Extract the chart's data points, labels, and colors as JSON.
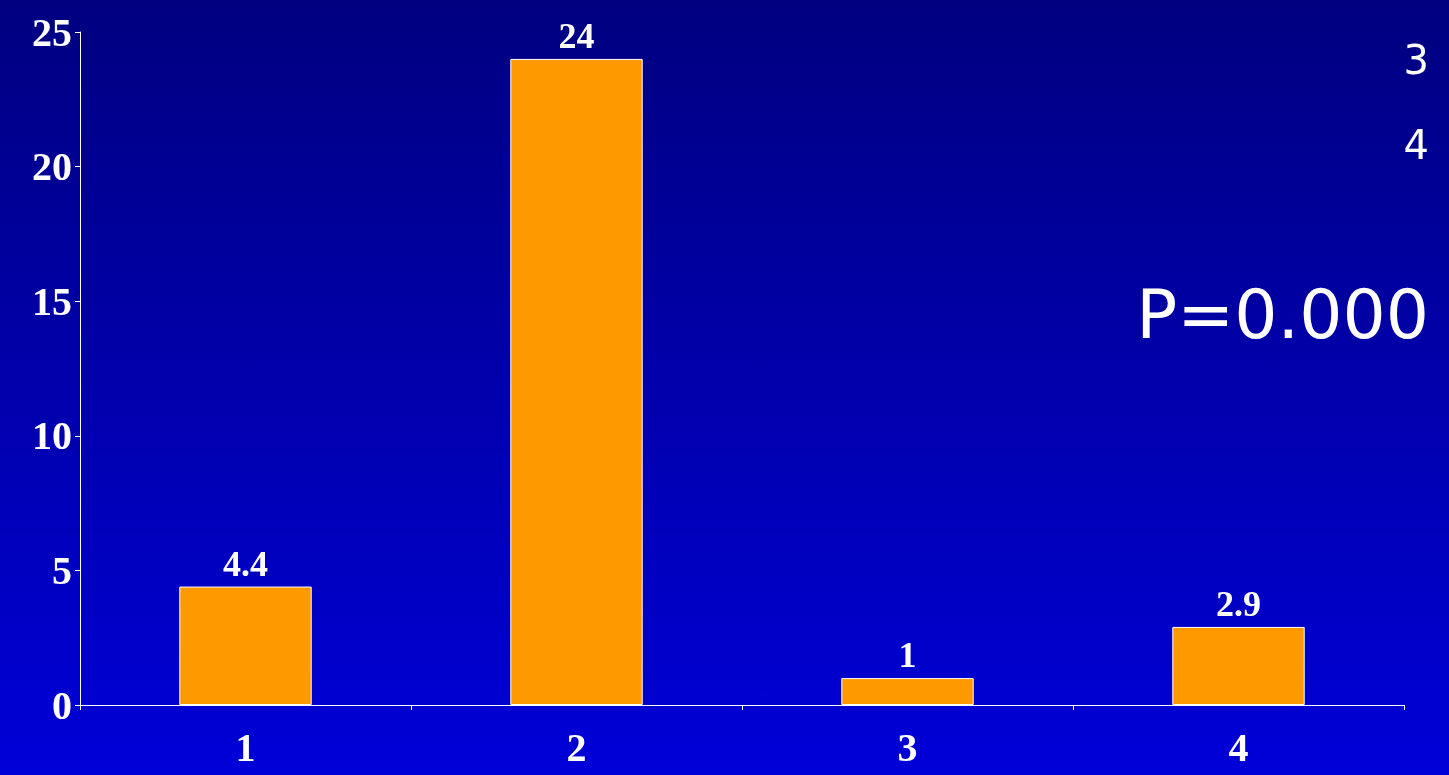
{
  "chart_data": {
    "type": "bar",
    "categories": [
      "1",
      "2",
      "3",
      "4"
    ],
    "values": [
      4.4,
      24,
      1,
      2.9
    ],
    "color": "#ff9900",
    "ylim": [
      0,
      25
    ],
    "yticks": [
      0,
      5,
      10,
      15,
      20,
      25
    ],
    "data_labels": true,
    "grid": false,
    "annotations": [
      "3",
      "4",
      "P=0.000"
    ]
  }
}
